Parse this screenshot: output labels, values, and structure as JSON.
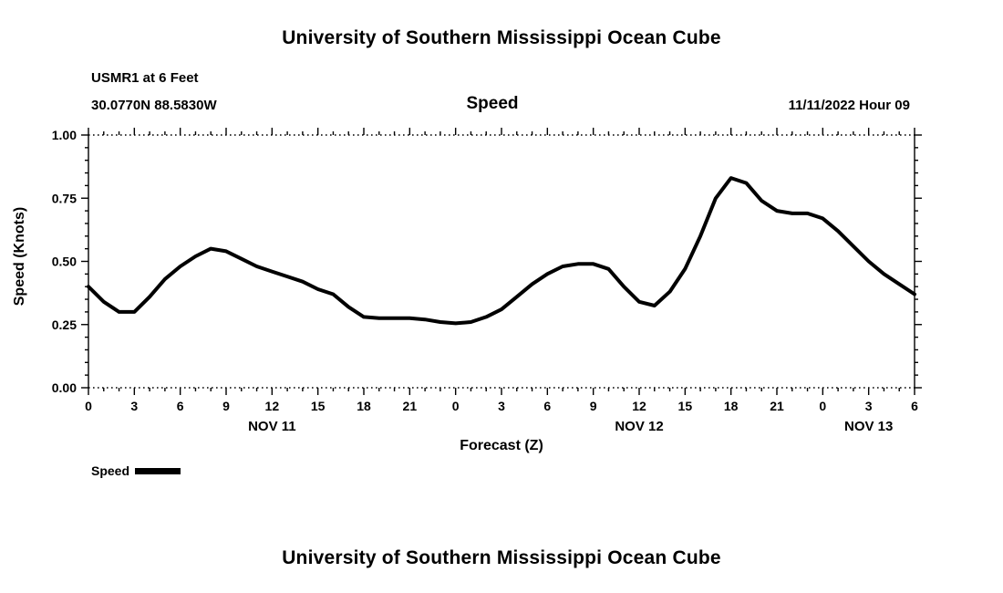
{
  "page": {
    "title_top": "University of Southern Mississippi Ocean Cube",
    "title_bottom": "University of Southern Mississippi Ocean Cube"
  },
  "header": {
    "station": "USMR1 at 6 Feet",
    "coordinates": "30.0770N  88.5830W",
    "panel_title": "Speed",
    "datetime": "11/11/2022 Hour 09"
  },
  "legend": {
    "label": "Speed"
  },
  "chart_data": {
    "type": "line",
    "title": "Speed",
    "xlabel": "Forecast (Z)",
    "ylabel": "Speed (Knots)",
    "ylim": [
      0.0,
      1.0
    ],
    "xlim_hours": [
      0,
      54
    ],
    "grid": "edges-dotted",
    "line_color": "#000000",
    "line_width": 4,
    "yticks": [
      0.0,
      0.25,
      0.5,
      0.75,
      1.0
    ],
    "ytick_labels": [
      "0.00",
      "0.25",
      "0.50",
      "0.75",
      "1.00"
    ],
    "y_minor_step": 0.05,
    "x_minor_step": 1,
    "xtick_hours": [
      0,
      3,
      6,
      9,
      12,
      15,
      18,
      21,
      24,
      27,
      30,
      33,
      36,
      39,
      42,
      45,
      48,
      51,
      54
    ],
    "xtick_labels": [
      "0",
      "3",
      "6",
      "9",
      "12",
      "15",
      "18",
      "21",
      "0",
      "3",
      "6",
      "9",
      "12",
      "15",
      "18",
      "21",
      "0",
      "3",
      "6"
    ],
    "date_labels": [
      {
        "label": "NOV 11",
        "hour": 12
      },
      {
        "label": "NOV 12",
        "hour": 36
      },
      {
        "label": "NOV 13",
        "hour": 51
      }
    ],
    "x_hours": [
      0,
      1,
      2,
      3,
      4,
      5,
      6,
      7,
      8,
      9,
      10,
      11,
      12,
      13,
      14,
      15,
      16,
      17,
      18,
      19,
      20,
      21,
      22,
      23,
      24,
      25,
      26,
      27,
      28,
      29,
      30,
      31,
      32,
      33,
      34,
      35,
      36,
      37,
      38,
      39,
      40,
      41,
      42,
      43,
      44,
      45,
      46,
      47,
      48,
      49,
      50,
      51,
      52,
      53,
      54
    ],
    "series": [
      {
        "name": "Speed",
        "values": [
          0.4,
          0.34,
          0.3,
          0.3,
          0.36,
          0.43,
          0.48,
          0.52,
          0.55,
          0.54,
          0.51,
          0.48,
          0.46,
          0.44,
          0.42,
          0.39,
          0.37,
          0.32,
          0.28,
          0.275,
          0.275,
          0.275,
          0.27,
          0.26,
          0.255,
          0.26,
          0.28,
          0.31,
          0.36,
          0.41,
          0.45,
          0.48,
          0.49,
          0.49,
          0.47,
          0.4,
          0.34,
          0.325,
          0.38,
          0.47,
          0.6,
          0.75,
          0.83,
          0.81,
          0.74,
          0.7,
          0.69,
          0.69,
          0.67,
          0.62,
          0.56,
          0.5,
          0.45,
          0.41,
          0.37
        ]
      }
    ]
  }
}
